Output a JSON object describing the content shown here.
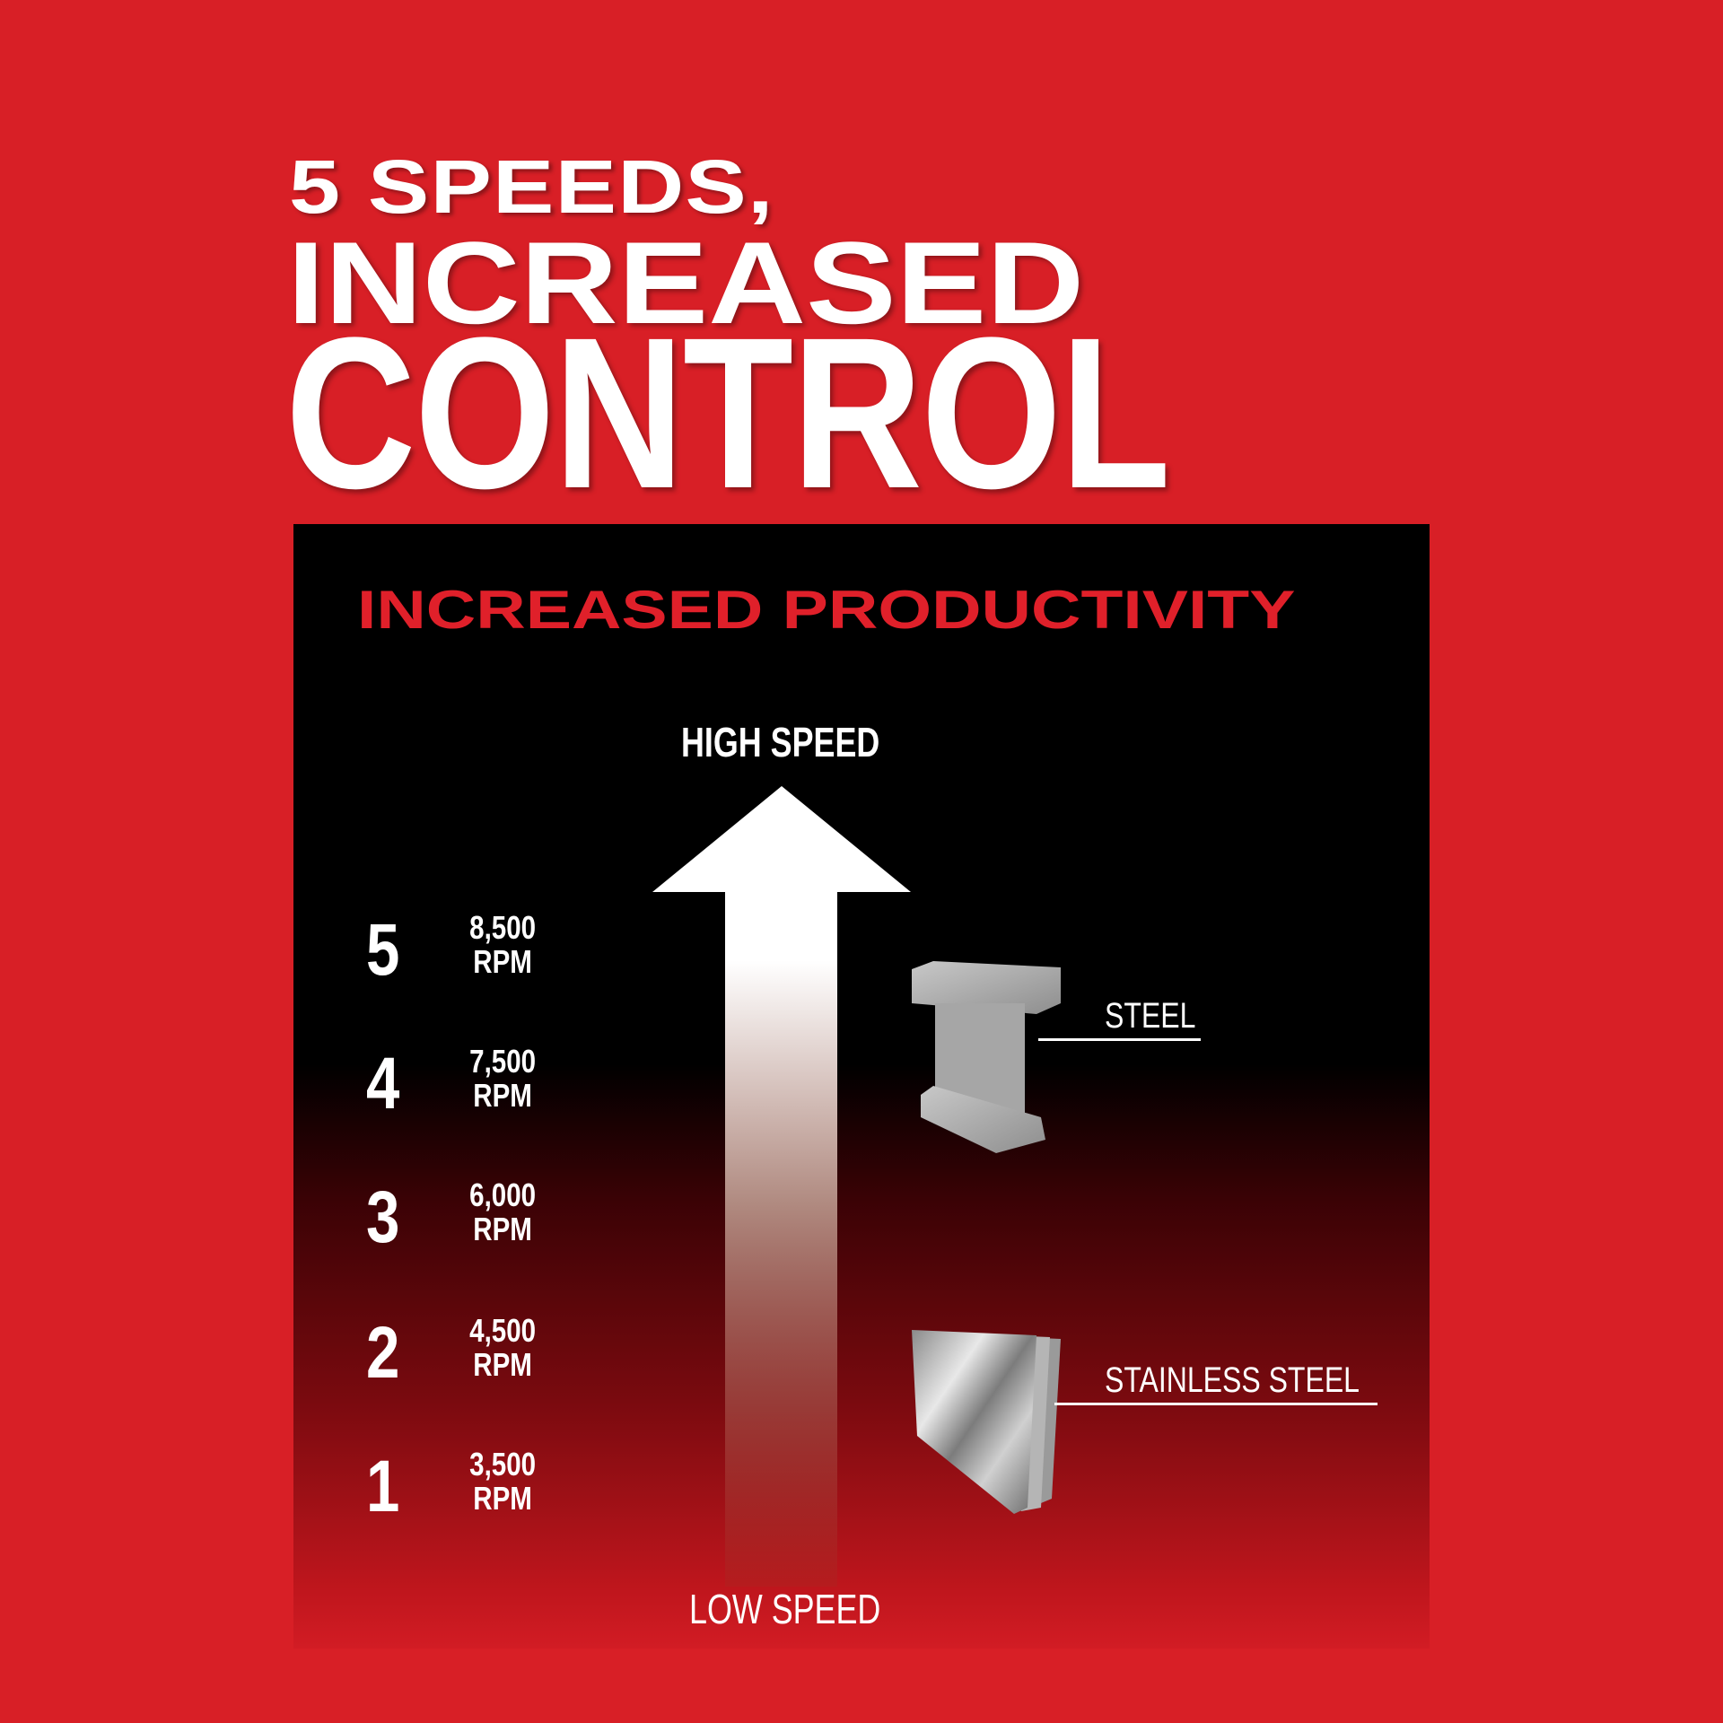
{
  "headline": {
    "line1": "5 SPEEDS,",
    "line2": "INCREASED",
    "line3": "CONTROL"
  },
  "panel": {
    "subtitle": "INCREASED PRODUCTIVITY",
    "high_label": "HIGH SPEED",
    "low_label": "LOW SPEED",
    "speeds": [
      {
        "setting": "5",
        "rpm": "8,500",
        "unit": "RPM"
      },
      {
        "setting": "4",
        "rpm": "7,500",
        "unit": "RPM"
      },
      {
        "setting": "3",
        "rpm": "6,000",
        "unit": "RPM"
      },
      {
        "setting": "2",
        "rpm": "4,500",
        "unit": "RPM"
      },
      {
        "setting": "1",
        "rpm": "3,500",
        "unit": "RPM"
      }
    ],
    "materials": [
      {
        "label": "STEEL",
        "icon": "i-beam-icon"
      },
      {
        "label": "STAINLESS STEEL",
        "icon": "metal-sheets-icon"
      }
    ]
  },
  "colors": {
    "background": "#d81f26",
    "accent": "#e0202a",
    "panel": "#000000"
  }
}
